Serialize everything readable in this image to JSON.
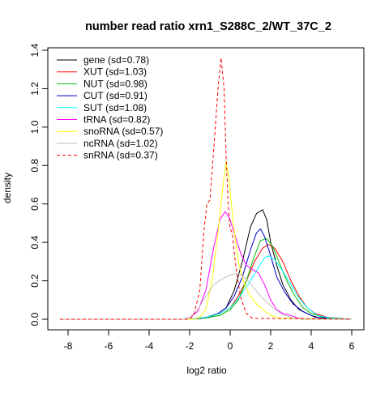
{
  "chart_data": {
    "type": "line",
    "title": "number read ratio xrn1_S288C_2/WT_37C_2",
    "xlabel": "log2 ratio",
    "ylabel": "density",
    "xlim": [
      -8.5,
      6.5
    ],
    "ylim": [
      -0.05,
      1.4
    ],
    "x_ticks": [
      -8,
      -6,
      -4,
      -2,
      0,
      2,
      4,
      6
    ],
    "y_ticks": [
      0.0,
      0.2,
      0.4,
      0.6,
      0.8,
      1.0,
      1.2,
      1.4
    ],
    "x_tick_labels": [
      "-8",
      "-6",
      "-4",
      "-2",
      "0",
      "2",
      "4",
      "6"
    ],
    "y_tick_labels": [
      "0.0",
      "0.2",
      "0.4",
      "0.6",
      "0.8",
      "1.0",
      "1.2",
      "1.4"
    ],
    "grid": false,
    "legend_position": "top-left",
    "series": [
      {
        "name": "gene (sd=0.78)",
        "color": "#000000",
        "dash": false,
        "points": [
          [
            -8.4,
            0
          ],
          [
            -2,
            0
          ],
          [
            -1.5,
            0.003
          ],
          [
            -1,
            0.01
          ],
          [
            -0.6,
            0.03
          ],
          [
            -0.2,
            0.06
          ],
          [
            0.2,
            0.15
          ],
          [
            0.6,
            0.3
          ],
          [
            1,
            0.48
          ],
          [
            1.3,
            0.55
          ],
          [
            1.6,
            0.57
          ],
          [
            1.8,
            0.52
          ],
          [
            2,
            0.4
          ],
          [
            2.3,
            0.28
          ],
          [
            2.6,
            0.18
          ],
          [
            3,
            0.1
          ],
          [
            3.4,
            0.05
          ],
          [
            4,
            0.02
          ],
          [
            4.5,
            0.005
          ],
          [
            6,
            0
          ]
        ]
      },
      {
        "name": "XUT (sd=1.03)",
        "color": "#ff0000",
        "dash": false,
        "points": [
          [
            -8.4,
            0
          ],
          [
            -2,
            0
          ],
          [
            -1.2,
            0.01
          ],
          [
            -0.5,
            0.03
          ],
          [
            0,
            0.06
          ],
          [
            0.4,
            0.12
          ],
          [
            0.8,
            0.2
          ],
          [
            1.2,
            0.3
          ],
          [
            1.6,
            0.37
          ],
          [
            1.9,
            0.39
          ],
          [
            2.2,
            0.37
          ],
          [
            2.6,
            0.3
          ],
          [
            3,
            0.2
          ],
          [
            3.4,
            0.12
          ],
          [
            3.8,
            0.06
          ],
          [
            4.2,
            0.03
          ],
          [
            4.8,
            0.01
          ],
          [
            6,
            0
          ]
        ]
      },
      {
        "name": "NUT (sd=0.98)",
        "color": "#00bb00",
        "dash": false,
        "points": [
          [
            -8.4,
            0
          ],
          [
            -2,
            0
          ],
          [
            -1.2,
            0.008
          ],
          [
            -0.5,
            0.02
          ],
          [
            0,
            0.05
          ],
          [
            0.4,
            0.1
          ],
          [
            0.8,
            0.2
          ],
          [
            1.2,
            0.33
          ],
          [
            1.5,
            0.41
          ],
          [
            1.8,
            0.42
          ],
          [
            2.1,
            0.38
          ],
          [
            2.4,
            0.3
          ],
          [
            2.8,
            0.2
          ],
          [
            3.2,
            0.12
          ],
          [
            3.6,
            0.06
          ],
          [
            4,
            0.03
          ],
          [
            4.6,
            0.01
          ],
          [
            6,
            0
          ]
        ]
      },
      {
        "name": "CUT (sd=0.91)",
        "color": "#0000cc",
        "dash": false,
        "points": [
          [
            -8.4,
            0
          ],
          [
            -2,
            0
          ],
          [
            -1.2,
            0.01
          ],
          [
            -0.6,
            0.03
          ],
          [
            -0.2,
            0.06
          ],
          [
            0.2,
            0.12
          ],
          [
            0.6,
            0.22
          ],
          [
            1,
            0.36
          ],
          [
            1.3,
            0.45
          ],
          [
            1.5,
            0.47
          ],
          [
            1.7,
            0.43
          ],
          [
            2,
            0.33
          ],
          [
            2.3,
            0.22
          ],
          [
            2.7,
            0.14
          ],
          [
            3.1,
            0.08
          ],
          [
            3.6,
            0.04
          ],
          [
            4.2,
            0.01
          ],
          [
            6,
            0
          ]
        ]
      },
      {
        "name": "SUT (sd=1.08)",
        "color": "#00ffff",
        "dash": false,
        "points": [
          [
            -8.4,
            0
          ],
          [
            -2,
            0
          ],
          [
            -1.2,
            0.01
          ],
          [
            -0.5,
            0.03
          ],
          [
            0,
            0.06
          ],
          [
            0.5,
            0.12
          ],
          [
            1,
            0.2
          ],
          [
            1.4,
            0.27
          ],
          [
            1.7,
            0.32
          ],
          [
            1.9,
            0.33
          ],
          [
            2.2,
            0.31
          ],
          [
            2.6,
            0.25
          ],
          [
            3,
            0.18
          ],
          [
            3.4,
            0.11
          ],
          [
            3.8,
            0.06
          ],
          [
            4.3,
            0.02
          ],
          [
            5,
            0.005
          ],
          [
            6,
            0
          ]
        ]
      },
      {
        "name": "tRNA (sd=0.82)",
        "color": "#ff00ff",
        "dash": false,
        "points": [
          [
            -8.4,
            0
          ],
          [
            -2.3,
            0
          ],
          [
            -2,
            0.01
          ],
          [
            -1.6,
            0.04
          ],
          [
            -1.2,
            0.15
          ],
          [
            -0.8,
            0.38
          ],
          [
            -0.5,
            0.52
          ],
          [
            -0.25,
            0.56
          ],
          [
            -0.05,
            0.53
          ],
          [
            0.2,
            0.45
          ],
          [
            0.5,
            0.35
          ],
          [
            0.8,
            0.28
          ],
          [
            1.1,
            0.26
          ],
          [
            1.4,
            0.24
          ],
          [
            1.7,
            0.18
          ],
          [
            2,
            0.1
          ],
          [
            2.3,
            0.05
          ],
          [
            2.6,
            0.03
          ],
          [
            3,
            0.02
          ],
          [
            3.4,
            0.005
          ],
          [
            4,
            0
          ],
          [
            6,
            0
          ]
        ]
      },
      {
        "name": "snoRNA (sd=0.57)",
        "color": "#ffff00",
        "dash": false,
        "points": [
          [
            -8.4,
            0
          ],
          [
            -1.8,
            0
          ],
          [
            -1.5,
            0.01
          ],
          [
            -1.2,
            0.05
          ],
          [
            -0.9,
            0.2
          ],
          [
            -0.6,
            0.45
          ],
          [
            -0.35,
            0.7
          ],
          [
            -0.2,
            0.82
          ],
          [
            -0.05,
            0.72
          ],
          [
            0.15,
            0.5
          ],
          [
            0.4,
            0.3
          ],
          [
            0.7,
            0.18
          ],
          [
            1,
            0.12
          ],
          [
            1.3,
            0.08
          ],
          [
            1.6,
            0.05
          ],
          [
            2,
            0.02
          ],
          [
            2.5,
            0.005
          ],
          [
            6,
            0
          ]
        ]
      },
      {
        "name": "ncRNA (sd=1.02)",
        "color": "#bebebe",
        "dash": false,
        "points": [
          [
            -8.4,
            0
          ],
          [
            -2.3,
            0
          ],
          [
            -2,
            0.01
          ],
          [
            -1.6,
            0.05
          ],
          [
            -1.2,
            0.12
          ],
          [
            -0.8,
            0.18
          ],
          [
            -0.4,
            0.21
          ],
          [
            0,
            0.23
          ],
          [
            0.4,
            0.24
          ],
          [
            0.8,
            0.21
          ],
          [
            1.2,
            0.16
          ],
          [
            1.6,
            0.11
          ],
          [
            2,
            0.07
          ],
          [
            2.5,
            0.03
          ],
          [
            3,
            0.01
          ],
          [
            3.5,
            0
          ],
          [
            6,
            0
          ]
        ]
      },
      {
        "name": "snRNA (sd=0.37)",
        "color": "#ff0000",
        "dash": true,
        "points": [
          [
            -8.4,
            0
          ],
          [
            -2,
            0
          ],
          [
            -1.8,
            0.02
          ],
          [
            -1.5,
            0.15
          ],
          [
            -1.3,
            0.45
          ],
          [
            -1.15,
            0.6
          ],
          [
            -1,
            0.62
          ],
          [
            -0.8,
            0.9
          ],
          [
            -0.6,
            1.2
          ],
          [
            -0.45,
            1.36
          ],
          [
            -0.3,
            1.2
          ],
          [
            -0.2,
            0.85
          ],
          [
            -0.1,
            0.6
          ],
          [
            0,
            0.47
          ],
          [
            0.1,
            0.45
          ],
          [
            0.25,
            0.3
          ],
          [
            0.5,
            0.12
          ],
          [
            0.8,
            0.03
          ],
          [
            1.1,
            0.005
          ],
          [
            6,
            0
          ]
        ]
      }
    ]
  }
}
